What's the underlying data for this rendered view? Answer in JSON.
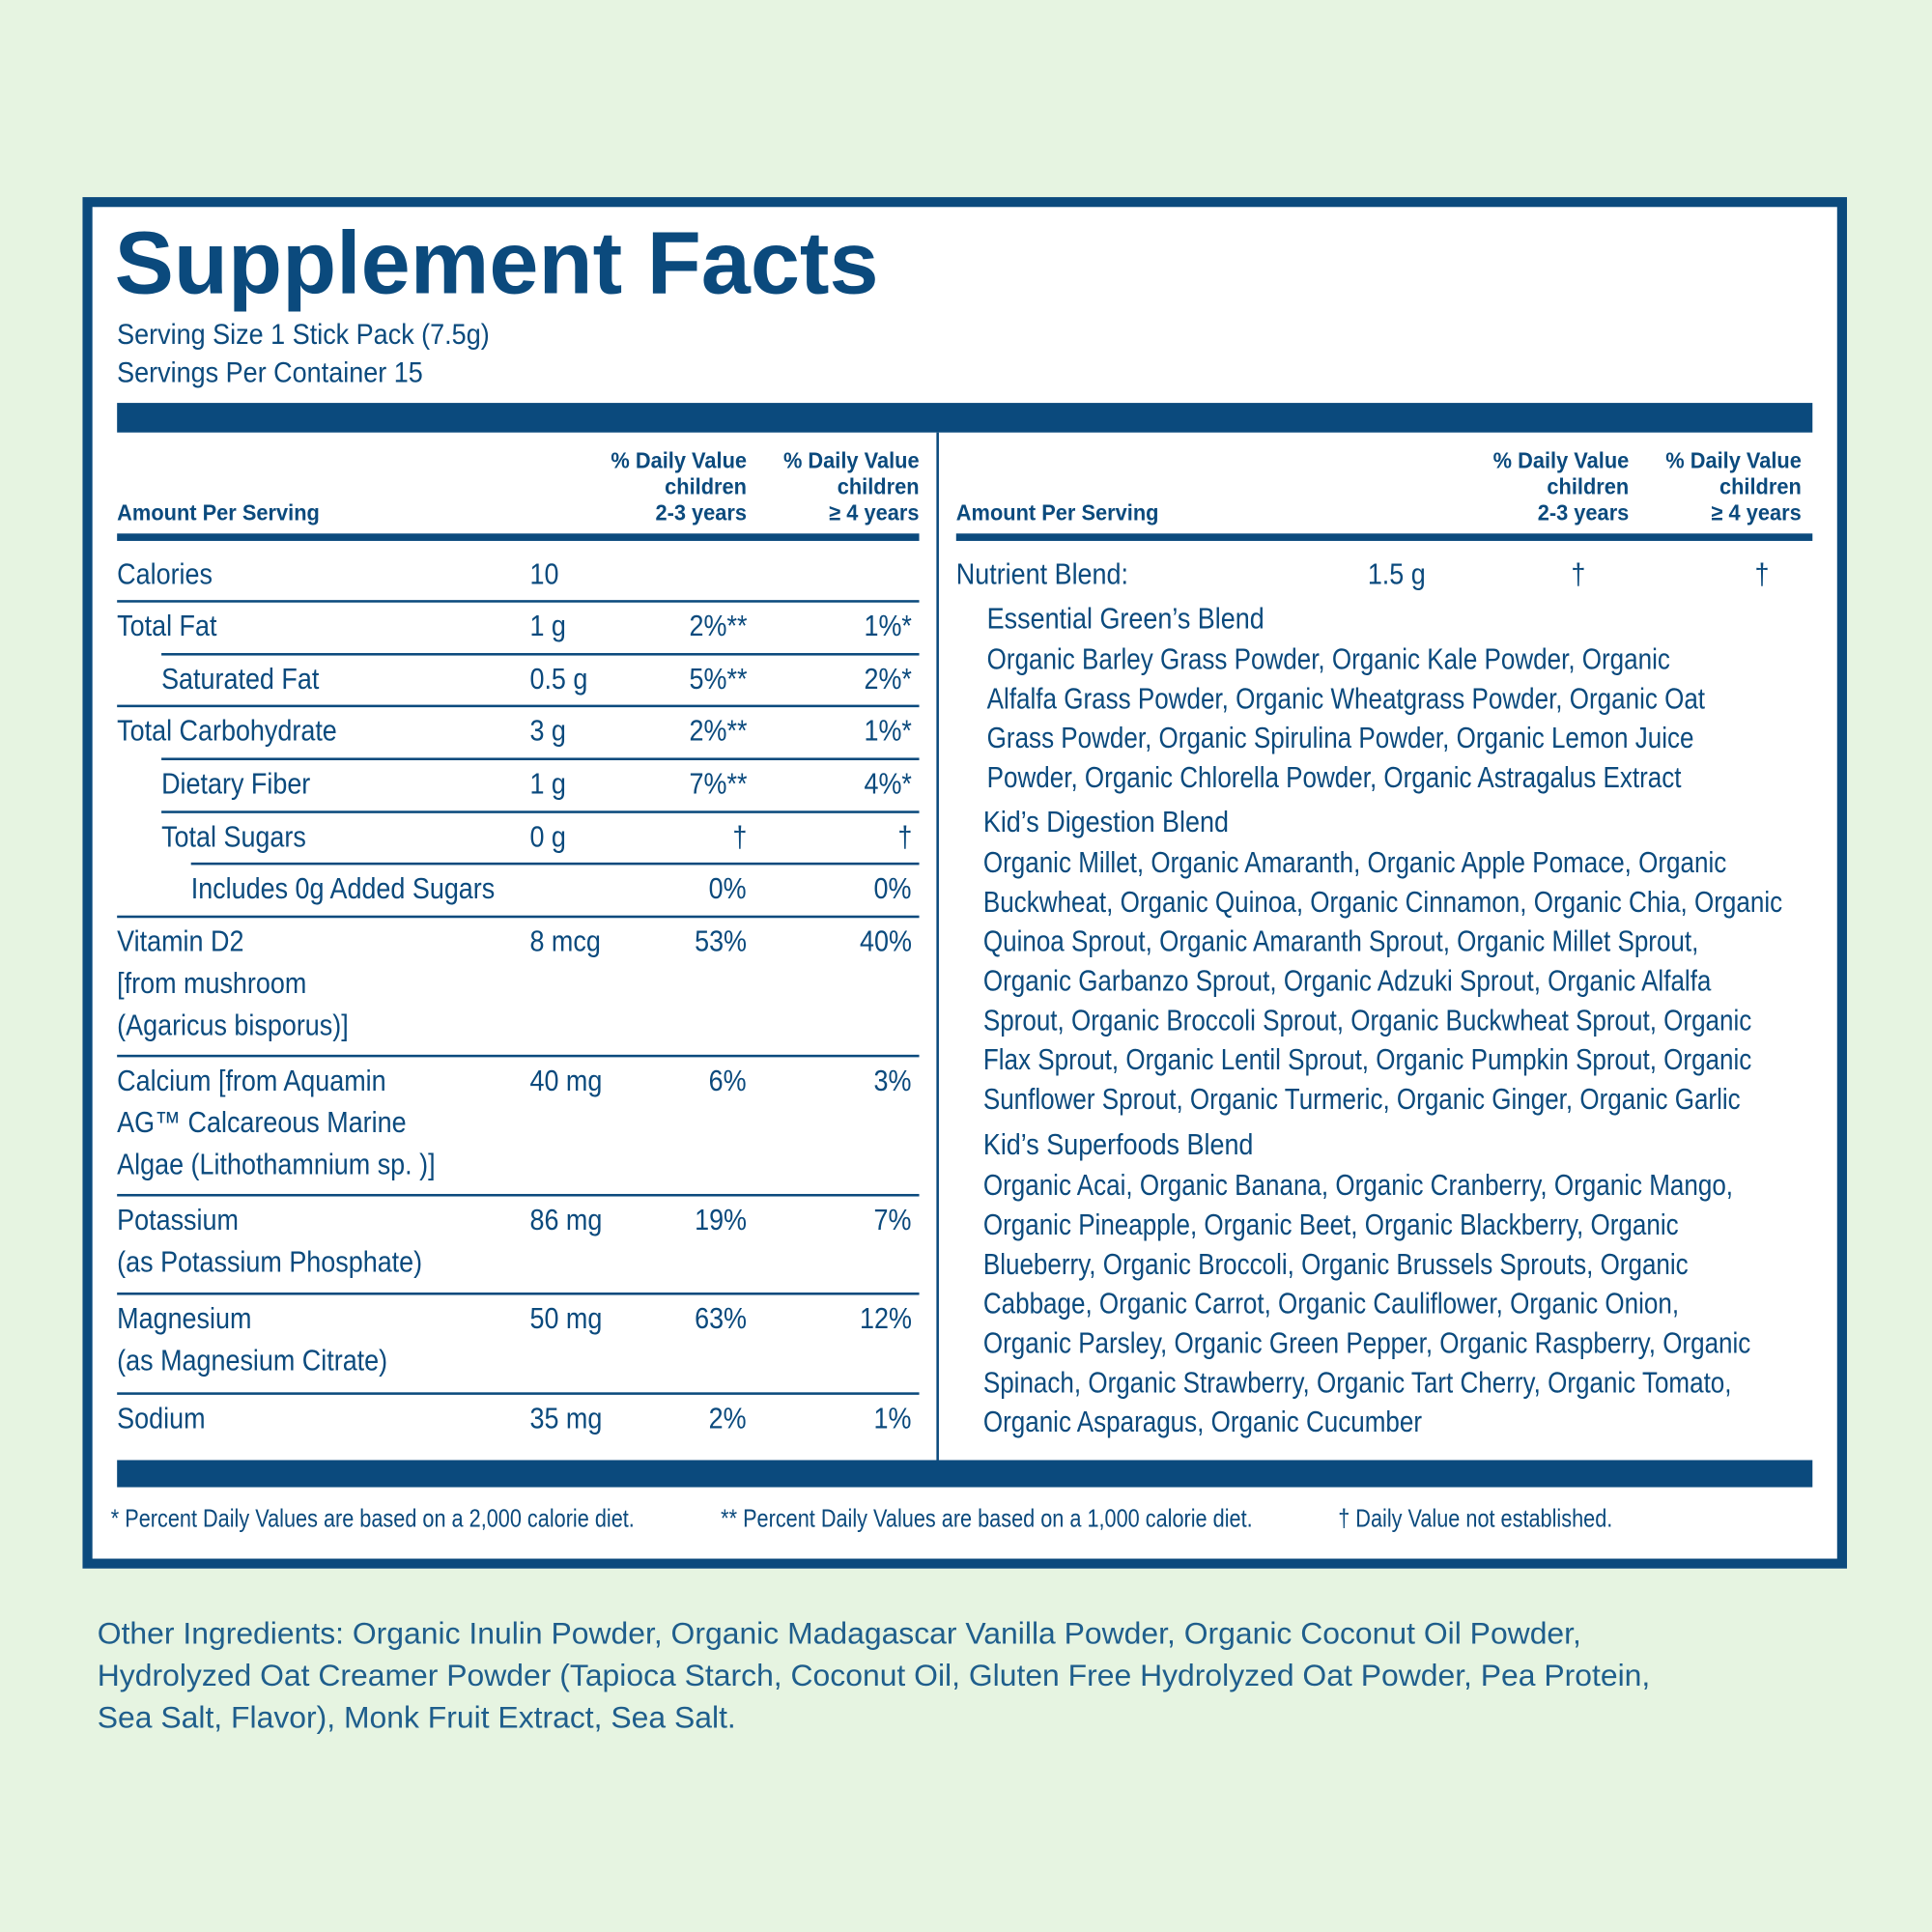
{
  "header": {
    "title": "Supplement Facts",
    "serving_size": "Serving Size 1 Stick Pack (7.5g)",
    "servings_per_container": "Servings Per Container 15"
  },
  "left_table": {
    "columns": {
      "amount": "Amount Per Serving",
      "dv_2_3": [
        "% Daily Value",
        "children",
        "2-3 years"
      ],
      "dv_4": [
        "% Daily Value",
        "children",
        "≥ 4 years"
      ]
    },
    "rows": [
      {
        "name": [
          "Calories"
        ],
        "amount": "10"
      },
      {
        "name": [
          "Total Fat"
        ],
        "amount": "1 g",
        "dv_2_3": "2%**",
        "dv_4": "1%*"
      },
      {
        "name": [
          "Saturated Fat"
        ],
        "amount": "0.5 g",
        "dv_2_3": "5%**",
        "dv_4": "2%*"
      },
      {
        "name": [
          "Total Carbohydrate"
        ],
        "amount": "3 g",
        "dv_2_3": "2%**",
        "dv_4": "1%*"
      },
      {
        "name": [
          "Dietary Fiber"
        ],
        "amount": "1 g",
        "dv_2_3": "7%**",
        "dv_4": "4%*"
      },
      {
        "name": [
          "Total Sugars"
        ],
        "amount": "0 g",
        "dv_2_3": "†",
        "dv_4": "†"
      },
      {
        "name": [
          "Includes 0g Added Sugars"
        ],
        "dv_2_3": "0%",
        "dv_4": "0%"
      },
      {
        "name": [
          "Vitamin D2",
          "[from mushroom",
          "(Agaricus bisporus)]"
        ],
        "amount": "8 mcg",
        "dv_2_3": "53%",
        "dv_4": "40%"
      },
      {
        "name": [
          "Calcium [from Aquamin",
          "AG™ Calcareous Marine",
          "Algae (Lithothamnium sp. )]"
        ],
        "amount": "40 mg",
        "dv_2_3": "6%",
        "dv_4": "3%"
      },
      {
        "name": [
          "Potassium",
          "(as Potassium Phosphate)"
        ],
        "amount": "86 mg",
        "dv_2_3": "19%",
        "dv_4": "7%"
      },
      {
        "name": [
          "Magnesium",
          "(as Magnesium Citrate)"
        ],
        "amount": "50 mg",
        "dv_2_3": "63%",
        "dv_4": "12%"
      },
      {
        "name": [
          "Sodium"
        ],
        "amount": "35 mg",
        "dv_2_3": "2%",
        "dv_4": "1%"
      }
    ]
  },
  "right_table": {
    "columns": {
      "amount": "Amount Per Serving",
      "dv_2_3": [
        "% Daily Value",
        "children",
        "2-3 years"
      ],
      "dv_4": [
        "% Daily Value",
        "children",
        "≥ 4 years"
      ]
    },
    "nutrient_blend": {
      "name": "Nutrient Blend:",
      "amount": "1.5 g",
      "dv_2_3": "†",
      "dv_4": "†"
    },
    "blends": [
      {
        "name": "Essential Green’s Blend",
        "lines": [
          "Organic Barley Grass Powder, Organic Kale Powder, Organic",
          "Alfalfa Grass Powder, Organic Wheatgrass Powder, Organic Oat",
          "Grass Powder, Organic Spirulina Powder, Organic Lemon Juice",
          "Powder, Organic Chlorella Powder, Organic Astragalus Extract"
        ]
      },
      {
        "name": "Kid’s Digestion Blend",
        "lines": [
          "Organic Millet, Organic Amaranth, Organic Apple Pomace, Organic",
          "Buckwheat, Organic Quinoa, Organic Cinnamon, Organic Chia, Organic",
          "Quinoa Sprout, Organic Amaranth Sprout, Organic Millet Sprout,",
          "Organic Garbanzo Sprout, Organic Adzuki Sprout, Organic Alfalfa",
          "Sprout, Organic Broccoli Sprout, Organic Buckwheat Sprout, Organic",
          "Flax Sprout, Organic Lentil Sprout, Organic Pumpkin Sprout, Organic",
          "Sunflower Sprout, Organic Turmeric, Organic Ginger, Organic Garlic"
        ]
      },
      {
        "name": "Kid’s Superfoods Blend",
        "lines": [
          "Organic Acai, Organic Banana, Organic Cranberry, Organic Mango,",
          "Organic Pineapple, Organic Beet, Organic Blackberry, Organic",
          "Blueberry, Organic Broccoli, Organic Brussels Sprouts, Organic",
          "Cabbage, Organic Carrot, Organic Cauliflower, Organic Onion,",
          "Organic Parsley, Organic Green Pepper, Organic Raspberry, Organic",
          "Spinach, Organic Strawberry, Organic Tart Cherry, Organic Tomato,",
          "Organic Asparagus, Organic Cucumber"
        ]
      }
    ]
  },
  "footnotes": [
    "* Percent Daily Values are based on a 2,000 calorie diet.",
    "** Percent Daily Values are based on a 1,000 calorie diet.",
    "† Daily Value not established."
  ],
  "other_ingredients": [
    "Other Ingredients: Organic Inulin Powder, Organic Madagascar Vanilla Powder, Organic Coconut Oil Powder,",
    "Hydrolyzed Oat Creamer Powder (Tapioca Starch, Coconut Oil,  Gluten Free Hydrolyzed Oat Powder, Pea Protein,",
    "Sea Salt, Flavor), Monk Fruit Extract, Sea Salt."
  ]
}
